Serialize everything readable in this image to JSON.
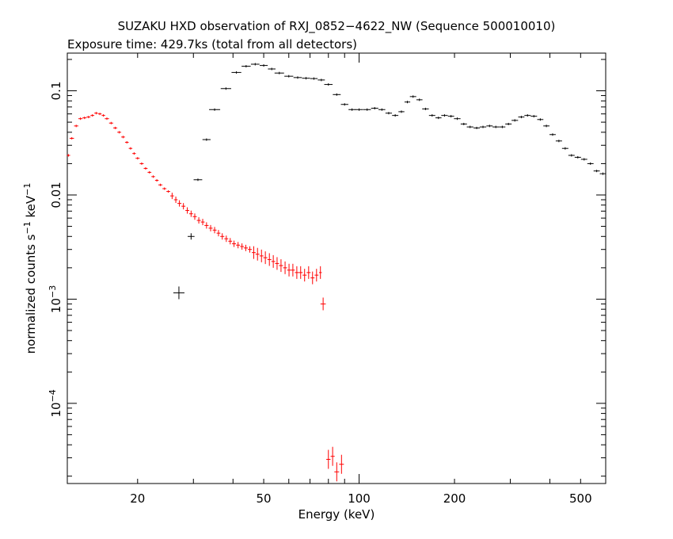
{
  "chart_data": {
    "type": "scatter",
    "title": "SUZAKU HXD observation of RXJ_0852−4622_NW (Sequence 500010010)",
    "subtitle": "Exposure time: 429.7ks (total from all detectors)",
    "xlabel": "Energy (keV)",
    "ylabel": {
      "prefix": "normalized counts s",
      "sup1": "−1",
      "middle": " keV",
      "sup2": "−1"
    },
    "xscale": "log",
    "yscale": "log",
    "xlim": [
      12,
      600
    ],
    "ylim": [
      1.7e-05,
      0.23
    ],
    "x_ticks": [
      {
        "value": 20,
        "label": "20"
      },
      {
        "value": 50,
        "label": "50"
      },
      {
        "value": 100,
        "label": "100"
      },
      {
        "value": 200,
        "label": "200"
      },
      {
        "value": 500,
        "label": "500"
      }
    ],
    "y_ticks": [
      {
        "value": 0.1,
        "label": "0.1"
      },
      {
        "value": 0.01,
        "label": "0.01"
      },
      {
        "value": 0.001,
        "base": "10",
        "exp": "−3"
      },
      {
        "value": 0.0001,
        "base": "10",
        "exp": "−4"
      }
    ],
    "series": [
      {
        "color": "#ff0000",
        "x": [
          12.1,
          12.4,
          12.8,
          13.2,
          13.6,
          14.0,
          14.4,
          14.8,
          15.2,
          15.6,
          16.0,
          16.5,
          17.0,
          17.5,
          18.0,
          18.5,
          19.0,
          19.5,
          20.0,
          20.6,
          21.2,
          21.8,
          22.4,
          23.0,
          23.6,
          24.3,
          25.0,
          25.7,
          26.4,
          27.1,
          27.9,
          28.7,
          29.5,
          30.3,
          31.2,
          32.1,
          33.0,
          34.0,
          35.0,
          36.0,
          37.0,
          38.1,
          39.2,
          40.3,
          41.5,
          42.7,
          43.9,
          45.2,
          46.5,
          47.8,
          49.2,
          50.6,
          52.1,
          53.6,
          55.1,
          56.7,
          58.4,
          60.1,
          61.8,
          63.6,
          65.4,
          67.3,
          69.3,
          71.3,
          73.4,
          75.5,
          77.0,
          80.0,
          82.5,
          85.0,
          88.0
        ],
        "y": [
          0.024,
          0.035,
          0.046,
          0.054,
          0.055,
          0.056,
          0.058,
          0.061,
          0.06,
          0.058,
          0.054,
          0.049,
          0.044,
          0.04,
          0.036,
          0.032,
          0.028,
          0.025,
          0.0225,
          0.02,
          0.018,
          0.0165,
          0.015,
          0.0138,
          0.0125,
          0.0115,
          0.0108,
          0.0098,
          0.009,
          0.0083,
          0.0078,
          0.0071,
          0.0066,
          0.0062,
          0.0057,
          0.0055,
          0.0051,
          0.0048,
          0.0046,
          0.0043,
          0.004,
          0.0038,
          0.0036,
          0.0034,
          0.0033,
          0.0032,
          0.0031,
          0.003,
          0.0028,
          0.0027,
          0.0026,
          0.0025,
          0.0024,
          0.0023,
          0.0022,
          0.0021,
          0.002,
          0.0019,
          0.0019,
          0.0018,
          0.0018,
          0.0017,
          0.0018,
          0.0016,
          0.0017,
          0.0018,
          0.0009,
          2.9e-05,
          3.1e-05,
          2.2e-05,
          2.6e-05
        ]
      },
      {
        "color": "#000000",
        "x": [
          27.0,
          29.5,
          31.0,
          33.0,
          35.0,
          38.0,
          41.0,
          44.0,
          47.0,
          50.0,
          53.0,
          56.0,
          60.0,
          64.0,
          68.0,
          72.0,
          76.0,
          80.0,
          85.0,
          90.0,
          95.0,
          100.0,
          106.0,
          112.0,
          118.0,
          124.0,
          130.0,
          136.0,
          142.0,
          148.0,
          155.0,
          162.0,
          170.0,
          178.0,
          186.0,
          195.0,
          204.0,
          214.0,
          224.0,
          235.0,
          246.0,
          258.0,
          270.0,
          283.0,
          296.0,
          310.0,
          325.0,
          340.0,
          356.0,
          373.0,
          390.0,
          408.0,
          427.0,
          447.0,
          468.0,
          490.0,
          513.0,
          537.0,
          562.0,
          588.0
        ],
        "y": [
          0.00115,
          0.004,
          0.014,
          0.034,
          0.066,
          0.105,
          0.15,
          0.172,
          0.18,
          0.175,
          0.162,
          0.148,
          0.138,
          0.134,
          0.132,
          0.131,
          0.127,
          0.115,
          0.092,
          0.074,
          0.066,
          0.066,
          0.066,
          0.068,
          0.066,
          0.061,
          0.058,
          0.063,
          0.078,
          0.088,
          0.082,
          0.067,
          0.058,
          0.055,
          0.058,
          0.057,
          0.054,
          0.048,
          0.045,
          0.044,
          0.045,
          0.046,
          0.045,
          0.045,
          0.048,
          0.052,
          0.056,
          0.058,
          0.057,
          0.053,
          0.046,
          0.038,
          0.033,
          0.028,
          0.024,
          0.023,
          0.022,
          0.02,
          0.017,
          0.016
        ]
      }
    ]
  }
}
